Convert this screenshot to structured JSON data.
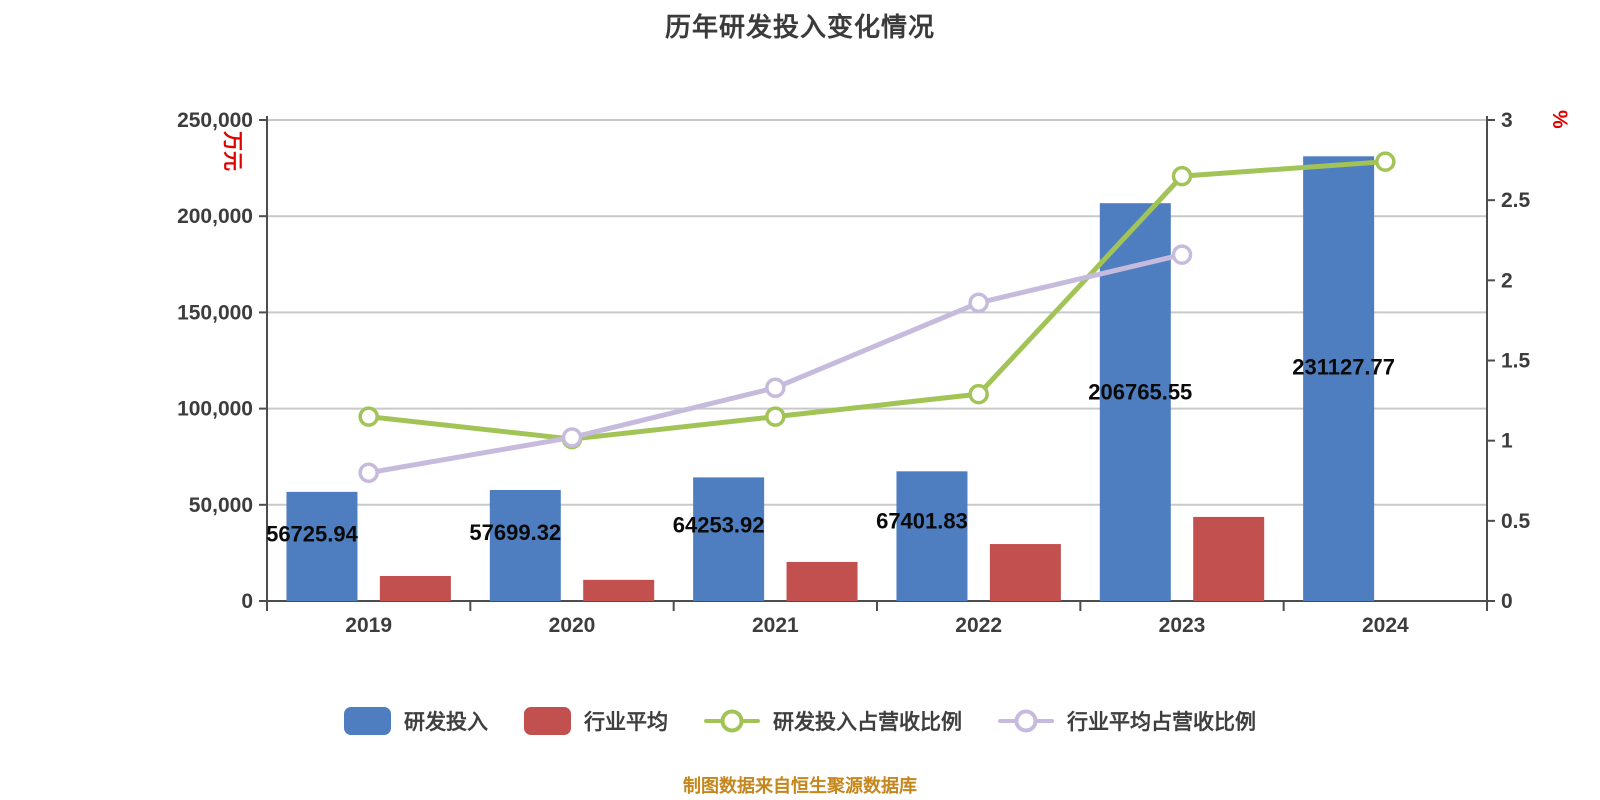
{
  "chart": {
    "title": "历年研发投入变化情况",
    "source_note": "制图数据来自恒生聚源数据库",
    "colors": {
      "rd_bar": "#4E7EC0",
      "industry_bar": "#C1504E",
      "rd_ratio_line": "#A2C457",
      "industry_ratio_line": "#C7BBDD",
      "axis": "#4D4D4D",
      "grid": "#C9C9C9",
      "tick_label": "#3D3D3D",
      "value_label": "#0A0A0A",
      "unit_label": "#E00000",
      "title": "#3B3B3B",
      "legend_text": "#3F3F3F",
      "source_note": "#C5861B",
      "marker_fill": "#FFFFFF"
    }
  },
  "chart_data": {
    "type": "bar",
    "combo": "grouped bars + two lines, dual y-axis",
    "title": "历年研发投入变化情况",
    "categories": [
      "2019",
      "2020",
      "2021",
      "2022",
      "2023",
      "2024"
    ],
    "series": [
      {
        "name": "研发投入",
        "type": "bar",
        "axis": "left",
        "color_key": "rd_bar",
        "values": [
          56725.94,
          57699.32,
          64253.92,
          67401.83,
          206765.55,
          231127.77
        ],
        "value_labels": [
          "56725.94",
          "57699.32",
          "64253.92",
          "67401.83",
          "206765.55",
          "231127.77"
        ]
      },
      {
        "name": "行业平均",
        "type": "bar",
        "axis": "left",
        "color_key": "industry_bar",
        "values": [
          13000,
          11000,
          20300,
          29600,
          43700,
          null
        ]
      },
      {
        "name": "研发投入占营收比例",
        "type": "line",
        "axis": "right",
        "color_key": "rd_ratio_line",
        "values": [
          1.15,
          1.01,
          1.15,
          1.29,
          2.65,
          2.74
        ]
      },
      {
        "name": "行业平均占营收比例",
        "type": "line",
        "axis": "right",
        "color_key": "industry_ratio_line",
        "values": [
          0.8,
          1.02,
          1.33,
          1.86,
          2.16,
          null
        ]
      }
    ],
    "left_axis": {
      "min": 0,
      "max": 250000,
      "step": 50000,
      "unit": "万元",
      "tick_labels": [
        "0",
        "50,000",
        "100,000",
        "150,000",
        "200,000",
        "250,000"
      ]
    },
    "right_axis": {
      "min": 0,
      "max": 3,
      "step": 0.5,
      "unit": "%",
      "tick_labels": [
        "0",
        "0.5",
        "1",
        "1.5",
        "2",
        "2.5",
        "3"
      ]
    },
    "grid": true,
    "legend_position": "bottom"
  }
}
